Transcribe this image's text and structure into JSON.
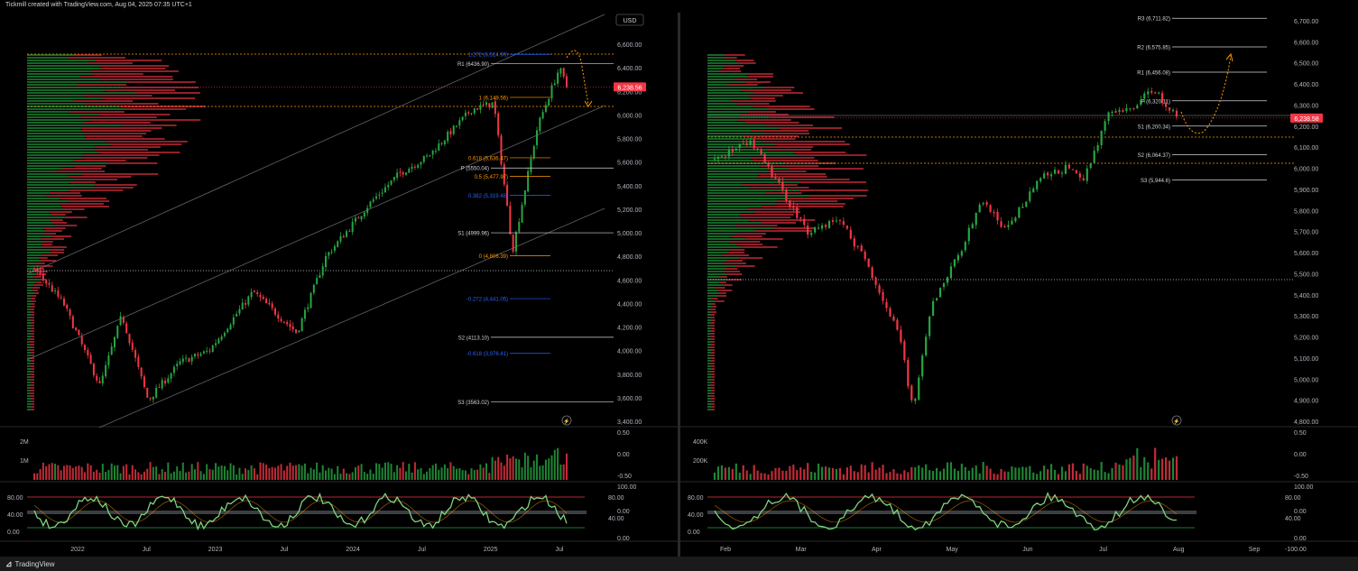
{
  "header": {
    "title": "Tickmill created with TradingView.com, Aug 04, 2025 07:35 UTC+1"
  },
  "footer": {
    "brand": "TradingView",
    "logo": "tradingview-logo-icon"
  },
  "colors": {
    "up": "#26a641",
    "down": "#f23645",
    "fib": "#ff9800",
    "pivot": "#d1d4dc",
    "ext": "#2962ff",
    "price_tag": "#f23645"
  },
  "left": {
    "currency": "USD",
    "price_axis": [
      "6,800.00",
      "6,600.00",
      "6,400.00",
      "6,200.00",
      "6,000.00",
      "5,800.00",
      "5,600.00",
      "5,400.00",
      "5,200.00",
      "5,000.00",
      "4,800.00",
      "4,600.00",
      "4,400.00",
      "4,200.00",
      "4,000.00",
      "3,800.00",
      "3,600.00",
      "3,400.00"
    ],
    "last_price": "6,238.56",
    "levels": [
      {
        "text": "1.272 (6,514.90)",
        "kind": "ext"
      },
      {
        "text": "R1 (6436.90)",
        "kind": "pivot"
      },
      {
        "text": "1 (6,149.56)",
        "kind": "fib"
      },
      {
        "text": "0.618 (5,636.47)",
        "kind": "fib"
      },
      {
        "text": "P (5550.04)",
        "kind": "pivot"
      },
      {
        "text": "0.5 (5,477.97)",
        "kind": "fib"
      },
      {
        "text": "0.382 (5,319.48)",
        "kind": "ext"
      },
      {
        "text": "S1 (4999.96)",
        "kind": "pivot"
      },
      {
        "text": "0 (4,806.39)",
        "kind": "fib"
      },
      {
        "text": "-0.272 (4,441.05)",
        "kind": "ext"
      },
      {
        "text": "S2 (4113.10)",
        "kind": "pivot"
      },
      {
        "text": "-0.618 (3,976.41)",
        "kind": "ext"
      },
      {
        "text": "S3 (3563.02)",
        "kind": "pivot"
      }
    ],
    "volume_axis": [
      "2M",
      "1M"
    ],
    "osc_axis_right": [
      "0.50",
      "0.00",
      "-0.50"
    ],
    "rsi_axis_left": [
      "80.00",
      "40.00",
      "0.00"
    ],
    "rsi_axis_right": [
      "100.00",
      "80.00",
      "0.00",
      "40.00",
      "0.00"
    ],
    "time_axis": [
      "2022",
      "Jul",
      "2023",
      "Jul",
      "2024",
      "Jul",
      "2025",
      "Jul"
    ]
  },
  "right": {
    "price_axis": [
      "6,700.00",
      "6,600.00",
      "6,500.00",
      "6,400.00",
      "6,300.00",
      "6,200.00",
      "6,100.00",
      "6,000.00",
      "5,900.00",
      "5,800.00",
      "5,700.00",
      "5,600.00",
      "5,500.00",
      "5,400.00",
      "5,300.00",
      "5,200.00",
      "5,100.00",
      "5,000.00",
      "4,900.00",
      "4,800.00"
    ],
    "last_price": "6,238.58",
    "levels": [
      {
        "text": "R3 (6,711.82)"
      },
      {
        "text": "R2 (6,575.85)"
      },
      {
        "text": "R1 (6,456.08)"
      },
      {
        "text": "P (6,320.11)"
      },
      {
        "text": "S1 (6,200.34)"
      },
      {
        "text": "S2 (6,064.37)"
      },
      {
        "text": "S3 (5,944.6)"
      }
    ],
    "volume_axis": [
      "400K",
      "200K"
    ],
    "osc_axis_right": [
      "0.50",
      "0.00",
      "-0.50"
    ],
    "rsi_axis_left": [
      "80.00",
      "40.00",
      "0.00"
    ],
    "rsi_axis_right": [
      "100.00",
      "80.00",
      "0.00",
      "40.00",
      "0.00",
      "-100.00"
    ],
    "time_axis": [
      "Feb",
      "Mar",
      "Apr",
      "May",
      "Jun",
      "Jul",
      "Aug",
      "Sep"
    ]
  },
  "chart_data": [
    {
      "type": "candlestick",
      "title": "",
      "currency": "USD",
      "ylim": [
        3400,
        6800
      ],
      "x_range": [
        "2022",
        "Jul 2025"
      ],
      "last_price": 6238.56,
      "key_levels": {
        "fib_ext_1.272": 6514.9,
        "R1": 6436.9,
        "fib_1": 6149.56,
        "fib_0.618": 5636.47,
        "P": 5550.04,
        "fib_0.5": 5477.97,
        "fib_0.382": 5319.48,
        "S1": 4999.96,
        "fib_0": 4806.39,
        "fib_-0.272": 4441.05,
        "S2": 4113.1,
        "fib_-0.618": 3976.41,
        "S3": 3563.02
      },
      "approx_path": [
        [
          2022.0,
          4700
        ],
        [
          2022.2,
          4400
        ],
        [
          2022.45,
          3700
        ],
        [
          2022.6,
          4300
        ],
        [
          2022.78,
          3580
        ],
        [
          2023.0,
          3900
        ],
        [
          2023.2,
          4000
        ],
        [
          2023.5,
          4500
        ],
        [
          2023.8,
          4150
        ],
        [
          2024.0,
          4800
        ],
        [
          2024.3,
          5250
        ],
        [
          2024.5,
          5500
        ],
        [
          2024.7,
          5650
        ],
        [
          2025.0,
          6050
        ],
        [
          2025.15,
          6100
        ],
        [
          2025.28,
          4850
        ],
        [
          2025.45,
          5900
        ],
        [
          2025.6,
          6400
        ],
        [
          2025.65,
          6238
        ]
      ]
    },
    {
      "type": "candlestick",
      "title": "",
      "ylim": [
        4800,
        6700
      ],
      "x_range": [
        "Feb 2025",
        "Sep 2025"
      ],
      "last_price": 6238.58,
      "key_levels": {
        "R3": 6711.82,
        "R2": 6575.85,
        "R1": 6456.08,
        "P": 6320.11,
        "S1": 6200.34,
        "S2": 6064.37,
        "S3": 5944.6
      },
      "approx_path": [
        [
          0,
          6050
        ],
        [
          0.08,
          6120
        ],
        [
          0.13,
          5950
        ],
        [
          0.2,
          5700
        ],
        [
          0.27,
          5760
        ],
        [
          0.33,
          5550
        ],
        [
          0.4,
          5200
        ],
        [
          0.43,
          4850
        ],
        [
          0.47,
          5350
        ],
        [
          0.53,
          5600
        ],
        [
          0.58,
          5850
        ],
        [
          0.63,
          5700
        ],
        [
          0.7,
          5950
        ],
        [
          0.76,
          6000
        ],
        [
          0.8,
          5950
        ],
        [
          0.85,
          6250
        ],
        [
          0.9,
          6280
        ],
        [
          0.95,
          6380
        ],
        [
          1.0,
          6238
        ]
      ]
    }
  ]
}
